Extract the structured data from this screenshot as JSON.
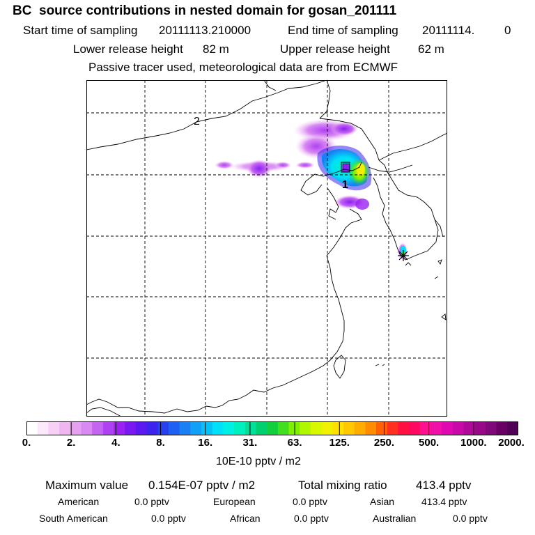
{
  "title": "BC  source contributions in nested domain for gosan_201111",
  "sampling": {
    "start_label": "Start time of sampling",
    "start_value": "20111113.210000",
    "end_label": "End time of sampling",
    "end_value": "20111114.",
    "end_value2": "0"
  },
  "release": {
    "lower_label": "Lower release height",
    "lower_value": "82 m",
    "upper_label": "Upper release height",
    "upper_value": "62 m"
  },
  "note": "Passive tracer used, meteorological data are from ECMWF",
  "map": {
    "domain_labels": [
      "2",
      "1"
    ],
    "receptor_symbol": "star-marker"
  },
  "legend": {
    "ticks": [
      "0.",
      "2.",
      "4.",
      "8.",
      "16.",
      "31.",
      "63.",
      "125.",
      "250.",
      "500.",
      "1000.",
      "2000."
    ],
    "unit": "10E-10 pptv / m2",
    "colors": [
      "#ffffff",
      "#fbe8fb",
      "#f6d0f6",
      "#f0b6f0",
      "#e6a0f0",
      "#d88af2",
      "#c465f2",
      "#b040f4",
      "#9a20f4",
      "#7a18f2",
      "#5c18f0",
      "#3c24ee",
      "#2a40f0",
      "#1e60f2",
      "#1880f4",
      "#10a0f6",
      "#08c0f8",
      "#00e0f8",
      "#00f0e6",
      "#00f0c0",
      "#00e09a",
      "#00d070",
      "#10d040",
      "#40e020",
      "#80f000",
      "#b0f800",
      "#d8f800",
      "#f0f000",
      "#ffe000",
      "#ffc800",
      "#ffac00",
      "#ff8c00",
      "#ff6000",
      "#ff3020",
      "#ff1040",
      "#ff0860",
      "#ff1090",
      "#f010a8",
      "#e008b0",
      "#c808a8",
      "#b00898",
      "#980888",
      "#800878",
      "#680066",
      "#500056"
    ]
  },
  "stats": {
    "max_label": "Maximum value",
    "max_value": "0.154E-07 pptv / m2",
    "total_label": "Total mixing ratio",
    "total_value": "413.4 pptv"
  },
  "contributions": [
    {
      "label": "American",
      "value": "0.0 pptv"
    },
    {
      "label": "European",
      "value": "0.0 pptv"
    },
    {
      "label": "Asian",
      "value": "413.4 pptv"
    },
    {
      "label": "South American",
      "value": "0.0 pptv"
    },
    {
      "label": "African",
      "value": "0.0 pptv"
    },
    {
      "label": "Australian",
      "value": "0.0 pptv"
    }
  ]
}
